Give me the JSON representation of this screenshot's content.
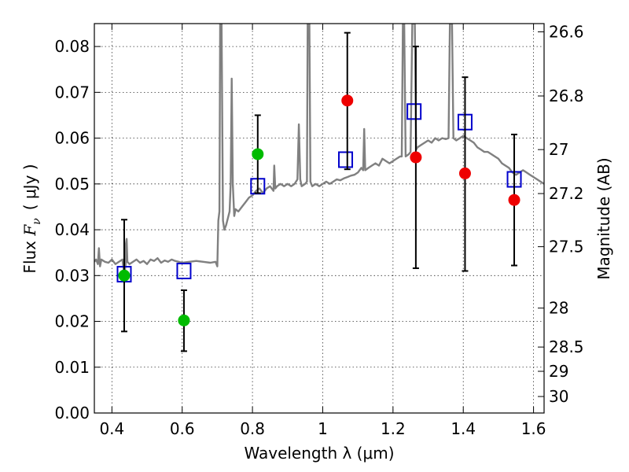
{
  "chart_data": {
    "type": "scatter",
    "xlabel": "Wavelength  λ (μm)",
    "ylabel": "Flux  F_ν ( μJy )",
    "ylabel_parts": {
      "prefix": "Flux  ",
      "symbol": "F",
      "sub": "ν",
      "unit": "( μJy )"
    },
    "y2label": "Magnitude (AB)",
    "xlim": [
      0.35,
      1.63
    ],
    "ylim": [
      0.0,
      0.085
    ],
    "grid": true,
    "colors": {
      "spectrum": "#808080",
      "model": "#0000cc",
      "green": "#00bb00",
      "red": "#ee0000",
      "errorbar": "#000000"
    },
    "xticks": [
      {
        "value": 0.4,
        "label": "0.4"
      },
      {
        "value": 0.6,
        "label": "0.6"
      },
      {
        "value": 0.8,
        "label": "0.8"
      },
      {
        "value": 1.0,
        "label": "1"
      },
      {
        "value": 1.2,
        "label": "1.2"
      },
      {
        "value": 1.4,
        "label": "1.4"
      },
      {
        "value": 1.6,
        "label": "1.6"
      }
    ],
    "yticks": [
      {
        "value": 0.0,
        "label": "0.00"
      },
      {
        "value": 0.01,
        "label": "0.01"
      },
      {
        "value": 0.02,
        "label": "0.02"
      },
      {
        "value": 0.03,
        "label": "0.03"
      },
      {
        "value": 0.04,
        "label": "0.04"
      },
      {
        "value": 0.05,
        "label": "0.05"
      },
      {
        "value": 0.06,
        "label": "0.06"
      },
      {
        "value": 0.07,
        "label": "0.07"
      },
      {
        "value": 0.08,
        "label": "0.08"
      }
    ],
    "y2ticks": [
      {
        "flux": 0.0832,
        "label": "26.6"
      },
      {
        "flux": 0.0692,
        "label": "26.8"
      },
      {
        "flux": 0.0575,
        "label": "27"
      },
      {
        "flux": 0.0479,
        "label": "27.2"
      },
      {
        "flux": 0.0363,
        "label": "27.5"
      },
      {
        "flux": 0.0229,
        "label": "28"
      },
      {
        "flux": 0.0144,
        "label": "28.5"
      },
      {
        "flux": 0.0091,
        "label": "29"
      },
      {
        "flux": 0.0036,
        "label": "30"
      }
    ],
    "series": [
      {
        "name": "Model spectrum",
        "kind": "line",
        "points": [
          [
            0.35,
            0.033
          ],
          [
            0.355,
            0.0335
          ],
          [
            0.36,
            0.0325
          ],
          [
            0.363,
            0.036
          ],
          [
            0.366,
            0.032
          ],
          [
            0.37,
            0.0335
          ],
          [
            0.38,
            0.033
          ],
          [
            0.39,
            0.0328
          ],
          [
            0.4,
            0.0335
          ],
          [
            0.41,
            0.0325
          ],
          [
            0.42,
            0.033
          ],
          [
            0.43,
            0.0335
          ],
          [
            0.435,
            0.03
          ],
          [
            0.44,
            0.033
          ],
          [
            0.44,
            0.037
          ],
          [
            0.442,
            0.038
          ],
          [
            0.444,
            0.033
          ],
          [
            0.45,
            0.0325
          ],
          [
            0.46,
            0.033
          ],
          [
            0.47,
            0.0335
          ],
          [
            0.48,
            0.0328
          ],
          [
            0.49,
            0.0332
          ],
          [
            0.5,
            0.0325
          ],
          [
            0.51,
            0.0335
          ],
          [
            0.52,
            0.0332
          ],
          [
            0.53,
            0.0338
          ],
          [
            0.54,
            0.0328
          ],
          [
            0.55,
            0.0333
          ],
          [
            0.56,
            0.033
          ],
          [
            0.57,
            0.0335
          ],
          [
            0.58,
            0.0332
          ],
          [
            0.59,
            0.033
          ],
          [
            0.6,
            0.0328
          ],
          [
            0.62,
            0.033
          ],
          [
            0.64,
            0.0332
          ],
          [
            0.66,
            0.033
          ],
          [
            0.68,
            0.0328
          ],
          [
            0.695,
            0.033
          ],
          [
            0.7,
            0.032
          ],
          [
            0.703,
            0.042
          ],
          [
            0.706,
            0.044
          ],
          [
            0.708,
            0.085
          ],
          [
            0.712,
            0.085
          ],
          [
            0.716,
            0.042
          ],
          [
            0.72,
            0.04
          ],
          [
            0.725,
            0.041
          ],
          [
            0.73,
            0.0425
          ],
          [
            0.735,
            0.044
          ],
          [
            0.738,
            0.05
          ],
          [
            0.741,
            0.073
          ],
          [
            0.744,
            0.05
          ],
          [
            0.748,
            0.043
          ],
          [
            0.752,
            0.0445
          ],
          [
            0.76,
            0.044
          ],
          [
            0.77,
            0.045
          ],
          [
            0.78,
            0.046
          ],
          [
            0.79,
            0.047
          ],
          [
            0.8,
            0.0475
          ],
          [
            0.81,
            0.0485
          ],
          [
            0.82,
            0.049
          ],
          [
            0.83,
            0.048
          ],
          [
            0.84,
            0.049
          ],
          [
            0.85,
            0.0495
          ],
          [
            0.86,
            0.0485
          ],
          [
            0.862,
            0.054
          ],
          [
            0.865,
            0.049
          ],
          [
            0.87,
            0.0495
          ],
          [
            0.88,
            0.05
          ],
          [
            0.89,
            0.0495
          ],
          [
            0.9,
            0.05
          ],
          [
            0.91,
            0.0495
          ],
          [
            0.92,
            0.05
          ],
          [
            0.928,
            0.051
          ],
          [
            0.932,
            0.063
          ],
          [
            0.936,
            0.051
          ],
          [
            0.94,
            0.0495
          ],
          [
            0.95,
            0.05
          ],
          [
            0.955,
            0.0505
          ],
          [
            0.957,
            0.085
          ],
          [
            0.962,
            0.085
          ],
          [
            0.965,
            0.0505
          ],
          [
            0.97,
            0.0495
          ],
          [
            0.98,
            0.05
          ],
          [
            0.99,
            0.0495
          ],
          [
            1.0,
            0.05
          ],
          [
            1.01,
            0.0505
          ],
          [
            1.02,
            0.05
          ],
          [
            1.03,
            0.0505
          ],
          [
            1.04,
            0.051
          ],
          [
            1.05,
            0.0508
          ],
          [
            1.06,
            0.0512
          ],
          [
            1.07,
            0.0515
          ],
          [
            1.08,
            0.0518
          ],
          [
            1.09,
            0.052
          ],
          [
            1.1,
            0.0525
          ],
          [
            1.11,
            0.0535
          ],
          [
            1.115,
            0.053
          ],
          [
            1.118,
            0.062
          ],
          [
            1.121,
            0.053
          ],
          [
            1.13,
            0.0535
          ],
          [
            1.14,
            0.054
          ],
          [
            1.15,
            0.0545
          ],
          [
            1.16,
            0.054
          ],
          [
            1.17,
            0.0555
          ],
          [
            1.18,
            0.055
          ],
          [
            1.19,
            0.0545
          ],
          [
            1.2,
            0.055
          ],
          [
            1.21,
            0.0555
          ],
          [
            1.22,
            0.056
          ],
          [
            1.225,
            0.056
          ],
          [
            1.228,
            0.085
          ],
          [
            1.232,
            0.085
          ],
          [
            1.236,
            0.056
          ],
          [
            1.245,
            0.0565
          ],
          [
            1.25,
            0.057
          ],
          [
            1.255,
            0.085
          ],
          [
            1.262,
            0.085
          ],
          [
            1.266,
            0.0575
          ],
          [
            1.27,
            0.058
          ],
          [
            1.28,
            0.0585
          ],
          [
            1.29,
            0.059
          ],
          [
            1.3,
            0.0595
          ],
          [
            1.31,
            0.059
          ],
          [
            1.32,
            0.06
          ],
          [
            1.33,
            0.0595
          ],
          [
            1.34,
            0.06
          ],
          [
            1.35,
            0.0598
          ],
          [
            1.358,
            0.06
          ],
          [
            1.362,
            0.085
          ],
          [
            1.368,
            0.085
          ],
          [
            1.372,
            0.06
          ],
          [
            1.38,
            0.0595
          ],
          [
            1.39,
            0.06
          ],
          [
            1.4,
            0.0605
          ],
          [
            1.41,
            0.06
          ],
          [
            1.42,
            0.0595
          ],
          [
            1.43,
            0.059
          ],
          [
            1.44,
            0.058
          ],
          [
            1.45,
            0.0575
          ],
          [
            1.46,
            0.057
          ],
          [
            1.47,
            0.057
          ],
          [
            1.48,
            0.0565
          ],
          [
            1.49,
            0.056
          ],
          [
            1.5,
            0.0555
          ],
          [
            1.51,
            0.0545
          ],
          [
            1.52,
            0.054
          ],
          [
            1.53,
            0.0535
          ],
          [
            1.54,
            0.0525
          ],
          [
            1.55,
            0.052
          ],
          [
            1.56,
            0.0525
          ],
          [
            1.57,
            0.053
          ],
          [
            1.58,
            0.0525
          ],
          [
            1.59,
            0.052
          ],
          [
            1.6,
            0.0515
          ],
          [
            1.61,
            0.051
          ],
          [
            1.62,
            0.0505
          ],
          [
            1.63,
            0.05
          ]
        ]
      },
      {
        "name": "Model photometry",
        "kind": "open-square",
        "points": [
          [
            0.435,
            0.0303
          ],
          [
            0.605,
            0.031
          ],
          [
            0.815,
            0.0495
          ],
          [
            1.065,
            0.0553
          ],
          [
            1.26,
            0.0658
          ],
          [
            1.405,
            0.0635
          ],
          [
            1.545,
            0.051
          ]
        ]
      },
      {
        "name": "Observed (green)",
        "kind": "filled-circle",
        "points": [
          {
            "x": 0.435,
            "y": 0.03,
            "ylo": 0.0178,
            "yhi": 0.0422
          },
          {
            "x": 0.605,
            "y": 0.0202,
            "ylo": 0.0135,
            "yhi": 0.0268
          },
          {
            "x": 0.815,
            "y": 0.0565,
            "ylo": 0.048,
            "yhi": 0.065
          }
        ]
      },
      {
        "name": "Observed (red)",
        "kind": "filled-circle",
        "points": [
          {
            "x": 1.07,
            "y": 0.0682,
            "ylo": 0.0532,
            "yhi": 0.083
          },
          {
            "x": 1.265,
            "y": 0.0558,
            "ylo": 0.0316,
            "yhi": 0.08
          },
          {
            "x": 1.405,
            "y": 0.0523,
            "ylo": 0.031,
            "yhi": 0.0733
          },
          {
            "x": 1.545,
            "y": 0.0465,
            "ylo": 0.0322,
            "yhi": 0.0608
          }
        ]
      }
    ]
  }
}
